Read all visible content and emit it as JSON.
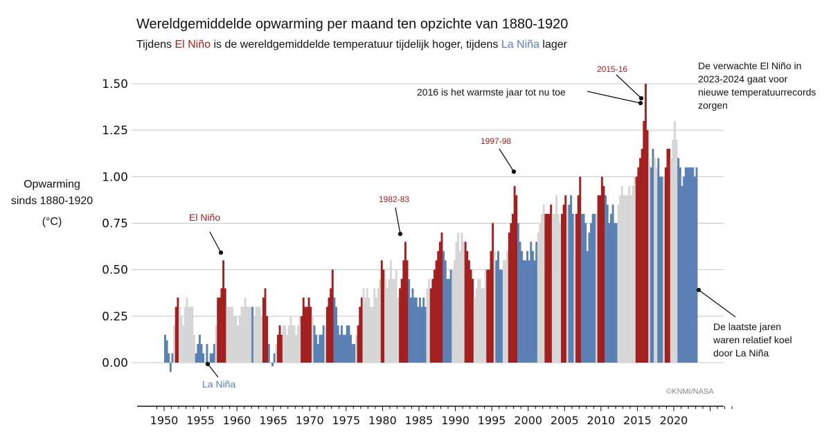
{
  "title": "Wereldgemiddelde opwarming per maand ten opzichte van 1880-1920",
  "subtitle": {
    "part1": "Tijdens ",
    "el_nino": "El Niño",
    "part2": " is de wereldgemiddelde temperatuur tijdelijk hoger, tijdens ",
    "la_nina": "La Niña",
    "part3": " lager"
  },
  "credit": "©KNMI/NASA",
  "colors": {
    "el_nino": "#a32020",
    "la_nina": "#5a80b4",
    "neutral": "#d6d6d6"
  },
  "chart_data": {
    "type": "bar",
    "ylabel": [
      "Opwarming",
      "sinds 1880-1920",
      "(°C)"
    ],
    "ylim": [
      -0.18,
      1.65
    ],
    "yticks": [
      "0.00",
      "0.25",
      "0.50",
      "0.75",
      "1.00",
      "1.25",
      "1.50"
    ],
    "xticks": [
      "1950",
      "1955",
      "1960",
      "1965",
      "1970",
      "1975",
      "1980",
      "1985",
      "1990",
      "1995",
      "2000",
      "2005",
      "2010",
      "2015",
      "2020"
    ],
    "grid": "horizontal",
    "resolution": "quarterly (approximated from monthly bars)",
    "phase_legend": {
      "E": "El Niño",
      "L": "La Niña",
      "N": "neutral"
    },
    "years": [
      {
        "y": 1950,
        "v": [
          0.15,
          0.12,
          0.05,
          -0.05
        ],
        "p": "LLLL"
      },
      {
        "y": 1951,
        "v": [
          0.05,
          0.2,
          0.3,
          0.35
        ],
        "p": "LNEE"
      },
      {
        "y": 1952,
        "v": [
          0.3,
          0.25,
          0.2,
          0.3
        ],
        "p": "NNNN"
      },
      {
        "y": 1953,
        "v": [
          0.35,
          0.3,
          0.3,
          0.3
        ],
        "p": "NNNN"
      },
      {
        "y": 1954,
        "v": [
          0.15,
          0.05,
          0.1,
          0.15
        ],
        "p": "NLLL"
      },
      {
        "y": 1955,
        "v": [
          0.1,
          0.05,
          0.0,
          0.1
        ],
        "p": "LLLL"
      },
      {
        "y": 1956,
        "v": [
          0.0,
          0.05,
          0.05,
          0.1
        ],
        "p": "LLLL"
      },
      {
        "y": 1957,
        "v": [
          0.2,
          0.35,
          0.35,
          0.4
        ],
        "p": "NEEE"
      },
      {
        "y": 1958,
        "v": [
          0.55,
          0.4,
          0.3,
          0.3
        ],
        "p": "EENN"
      },
      {
        "y": 1959,
        "v": [
          0.3,
          0.3,
          0.25,
          0.25
        ],
        "p": "NNNN"
      },
      {
        "y": 1960,
        "v": [
          0.2,
          0.25,
          0.3,
          0.3
        ],
        "p": "NNNN"
      },
      {
        "y": 1961,
        "v": [
          0.35,
          0.3,
          0.3,
          0.3
        ],
        "p": "NNNN"
      },
      {
        "y": 1962,
        "v": [
          0.3,
          0.25,
          0.3,
          0.3
        ],
        "p": "LNNN"
      },
      {
        "y": 1963,
        "v": [
          0.3,
          0.25,
          0.35,
          0.4
        ],
        "p": "NNEE"
      },
      {
        "y": 1964,
        "v": [
          0.25,
          0.1,
          0.0,
          -0.02
        ],
        "p": "ELLL"
      },
      {
        "y": 1965,
        "v": [
          0.05,
          0.1,
          0.15,
          0.2
        ],
        "p": "LNEE"
      },
      {
        "y": 1966,
        "v": [
          0.15,
          0.2,
          0.2,
          0.15
        ],
        "p": "ENNN"
      },
      {
        "y": 1967,
        "v": [
          0.2,
          0.25,
          0.2,
          0.2
        ],
        "p": "NNNN"
      },
      {
        "y": 1968,
        "v": [
          0.15,
          0.2,
          0.25,
          0.25
        ],
        "p": "NNNE"
      },
      {
        "y": 1969,
        "v": [
          0.35,
          0.3,
          0.3,
          0.35
        ],
        "p": "EEEE"
      },
      {
        "y": 1970,
        "v": [
          0.3,
          0.25,
          0.2,
          0.15
        ],
        "p": "ENLL"
      },
      {
        "y": 1971,
        "v": [
          0.1,
          0.15,
          0.15,
          0.2
        ],
        "p": "LLLL"
      },
      {
        "y": 1972,
        "v": [
          0.2,
          0.3,
          0.35,
          0.4
        ],
        "p": "NEEE"
      },
      {
        "y": 1973,
        "v": [
          0.5,
          0.35,
          0.3,
          0.2
        ],
        "p": "ELLL"
      },
      {
        "y": 1974,
        "v": [
          0.15,
          0.2,
          0.15,
          0.15
        ],
        "p": "LLLL"
      },
      {
        "y": 1975,
        "v": [
          0.2,
          0.2,
          0.15,
          0.1
        ],
        "p": "LLLL"
      },
      {
        "y": 1976,
        "v": [
          0.1,
          0.15,
          0.2,
          0.3
        ],
        "p": "LNEE"
      },
      {
        "y": 1977,
        "v": [
          0.35,
          0.4,
          0.35,
          0.4
        ],
        "p": "ENNN"
      },
      {
        "y": 1978,
        "v": [
          0.35,
          0.3,
          0.3,
          0.4
        ],
        "p": "NNNN"
      },
      {
        "y": 1979,
        "v": [
          0.35,
          0.4,
          0.45,
          0.55
        ],
        "p": "NNNE"
      },
      {
        "y": 1980,
        "v": [
          0.5,
          0.45,
          0.4,
          0.45
        ],
        "p": "ENNN"
      },
      {
        "y": 1981,
        "v": [
          0.55,
          0.45,
          0.45,
          0.5
        ],
        "p": "NNNN"
      },
      {
        "y": 1982,
        "v": [
          0.35,
          0.4,
          0.45,
          0.55
        ],
        "p": "NEEE"
      },
      {
        "y": 1983,
        "v": [
          0.65,
          0.55,
          0.45,
          0.35
        ],
        "p": "EELL"
      },
      {
        "y": 1984,
        "v": [
          0.4,
          0.35,
          0.35,
          0.3
        ],
        "p": "LLLL"
      },
      {
        "y": 1985,
        "v": [
          0.35,
          0.3,
          0.35,
          0.3
        ],
        "p": "LLLL"
      },
      {
        "y": 1986,
        "v": [
          0.4,
          0.45,
          0.4,
          0.45
        ],
        "p": "NNEE"
      },
      {
        "y": 1987,
        "v": [
          0.5,
          0.55,
          0.6,
          0.65
        ],
        "p": "EEEE"
      },
      {
        "y": 1988,
        "v": [
          0.7,
          0.6,
          0.55,
          0.45
        ],
        "p": "ELLL"
      },
      {
        "y": 1989,
        "v": [
          0.45,
          0.5,
          0.5,
          0.55
        ],
        "p": "LLNN"
      },
      {
        "y": 1990,
        "v": [
          0.65,
          0.7,
          0.6,
          0.7
        ],
        "p": "NNNN"
      },
      {
        "y": 1991,
        "v": [
          0.65,
          0.65,
          0.6,
          0.55
        ],
        "p": "NEEE"
      },
      {
        "y": 1992,
        "v": [
          0.5,
          0.45,
          0.35,
          0.4
        ],
        "p": "EENN"
      },
      {
        "y": 1993,
        "v": [
          0.45,
          0.45,
          0.4,
          0.4
        ],
        "p": "NNNN"
      },
      {
        "y": 1994,
        "v": [
          0.5,
          0.5,
          0.5,
          0.6
        ],
        "p": "NEEE"
      },
      {
        "y": 1995,
        "v": [
          0.75,
          0.6,
          0.55,
          0.6
        ],
        "p": "ENLL"
      },
      {
        "y": 1996,
        "v": [
          0.5,
          0.5,
          0.55,
          0.55
        ],
        "p": "LLNN"
      },
      {
        "y": 1997,
        "v": [
          0.6,
          0.7,
          0.75,
          0.8
        ],
        "p": "NEEE"
      },
      {
        "y": 1998,
        "v": [
          0.95,
          0.9,
          0.75,
          0.65
        ],
        "p": "EELL"
      },
      {
        "y": 1999,
        "v": [
          0.6,
          0.55,
          0.55,
          0.6
        ],
        "p": "LLLL"
      },
      {
        "y": 2000,
        "v": [
          0.55,
          0.65,
          0.6,
          0.55
        ],
        "p": "LLLL"
      },
      {
        "y": 2001,
        "v": [
          0.65,
          0.7,
          0.75,
          0.8
        ],
        "p": "LNNN"
      },
      {
        "y": 2002,
        "v": [
          0.85,
          0.8,
          0.8,
          0.8
        ],
        "p": "NEEE"
      },
      {
        "y": 2003,
        "v": [
          0.85,
          0.8,
          0.8,
          0.9
        ],
        "p": "ENNN"
      },
      {
        "y": 2004,
        "v": [
          0.8,
          0.75,
          0.8,
          0.85
        ],
        "p": "NNEE"
      },
      {
        "y": 2005,
        "v": [
          0.9,
          0.85,
          0.85,
          0.9
        ],
        "p": "ENLL"
      },
      {
        "y": 2006,
        "v": [
          0.8,
          0.8,
          0.8,
          0.9
        ],
        "p": "LNEE"
      },
      {
        "y": 2007,
        "v": [
          1.0,
          0.8,
          0.8,
          0.75
        ],
        "p": "ELLL"
      },
      {
        "y": 2008,
        "v": [
          0.6,
          0.7,
          0.75,
          0.8
        ],
        "p": "LLLL"
      },
      {
        "y": 2009,
        "v": [
          0.8,
          0.8,
          0.9,
          0.9
        ],
        "p": "LNEE"
      },
      {
        "y": 2010,
        "v": [
          1.0,
          0.95,
          0.9,
          0.85
        ],
        "p": "EELL"
      },
      {
        "y": 2011,
        "v": [
          0.75,
          0.8,
          0.85,
          0.75
        ],
        "p": "LLLL"
      },
      {
        "y": 2012,
        "v": [
          0.75,
          0.85,
          0.9,
          0.95
        ],
        "p": "LNNN"
      },
      {
        "y": 2013,
        "v": [
          0.9,
          0.9,
          0.9,
          0.95
        ],
        "p": "NNNN"
      },
      {
        "y": 2014,
        "v": [
          0.9,
          0.95,
          1.0,
          1.0
        ],
        "p": "NNNE"
      },
      {
        "y": 2015,
        "v": [
          1.05,
          1.1,
          1.15,
          1.3
        ],
        "p": "EEEE"
      },
      {
        "y": 2016,
        "v": [
          1.5,
          1.25,
          1.1,
          1.05
        ],
        "p": "EENL"
      },
      {
        "y": 2017,
        "v": [
          1.15,
          1.1,
          1.05,
          1.1
        ],
        "p": "LNNL"
      },
      {
        "y": 2018,
        "v": [
          1.0,
          1.0,
          1.0,
          1.05
        ],
        "p": "LLNE"
      },
      {
        "y": 2019,
        "v": [
          1.15,
          1.15,
          1.1,
          1.2
        ],
        "p": "EENN"
      },
      {
        "y": 2020,
        "v": [
          1.3,
          1.2,
          1.1,
          1.05
        ],
        "p": "NNLL"
      },
      {
        "y": 2021,
        "v": [
          0.95,
          1.0,
          1.05,
          1.05
        ],
        "p": "LLLL"
      },
      {
        "y": 2022,
        "v": [
          1.05,
          1.05,
          1.05,
          1.0
        ],
        "p": "LLLL"
      },
      {
        "y": 2023,
        "v": [
          1.05
        ],
        "p": "L"
      }
    ]
  },
  "annotations": {
    "el_nino": "El Niño",
    "la_nina": "La Niña",
    "e1982": "1982-83",
    "e1997": "1997-98",
    "e2015": "2015-16",
    "warmest": "2016 is het warmste jaar tot nu toe",
    "forecast": "De verwachte El Niño in 2023-2024 gaat voor nieuwe temperatuurrecords zorgen",
    "recent": "De laatste jaren waren relatief koel door La Niña"
  }
}
